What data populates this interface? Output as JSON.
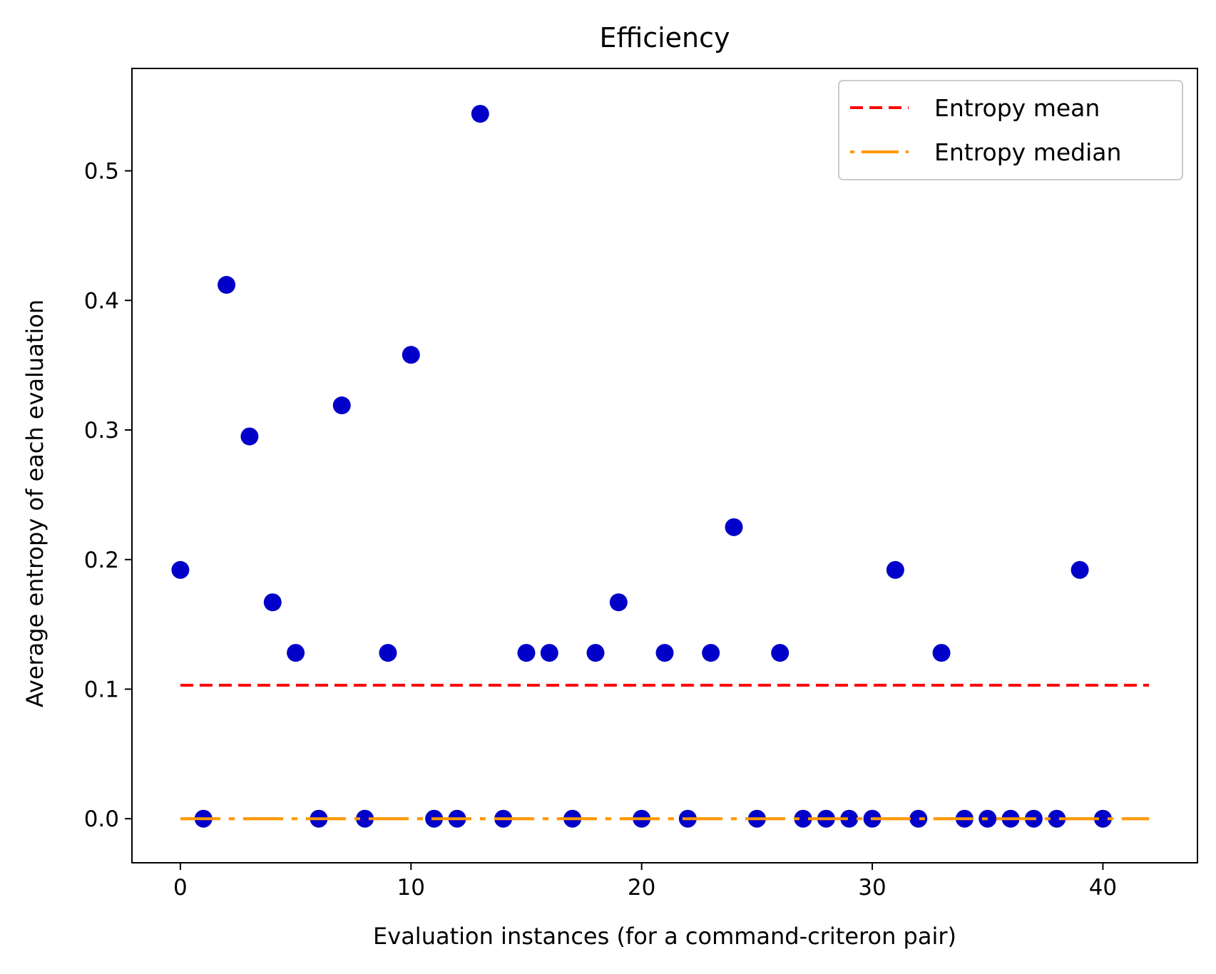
{
  "chart_data": {
    "type": "scatter",
    "title": "Efficiency",
    "xlabel": "Evaluation instances (for a command-criteron pair)",
    "ylabel": "Average entropy of each evaluation",
    "xlim": [
      -2.1,
      44.1
    ],
    "ylim": [
      -0.034,
      0.579
    ],
    "xticks": [
      0,
      10,
      20,
      30,
      40
    ],
    "yticks": [
      0.0,
      0.1,
      0.2,
      0.3,
      0.4,
      0.5
    ],
    "xtick_labels": [
      "0",
      "10",
      "20",
      "30",
      "40"
    ],
    "ytick_labels": [
      "0.0",
      "0.1",
      "0.2",
      "0.3",
      "0.4",
      "0.5"
    ],
    "grid": false,
    "legend_position": "top-right",
    "series": [
      {
        "kind": "points",
        "color": "#0000c8",
        "x": [
          0,
          1,
          2,
          3,
          4,
          5,
          6,
          7,
          8,
          9,
          10,
          11,
          12,
          13,
          14,
          15,
          16,
          17,
          18,
          19,
          20,
          21,
          22,
          23,
          24,
          25,
          26,
          27,
          28,
          29,
          30,
          31,
          32,
          33,
          34,
          35,
          36,
          37,
          38,
          39,
          40
        ],
        "y": [
          0.192,
          0.0,
          0.412,
          0.295,
          0.167,
          0.128,
          0.0,
          0.319,
          0.0,
          0.128,
          0.358,
          0.0,
          0.0,
          0.544,
          0.0,
          0.128,
          0.128,
          0.0,
          0.128,
          0.167,
          0.0,
          0.128,
          0.0,
          0.128,
          0.225,
          0.0,
          0.128,
          0.0,
          0.0,
          0.0,
          0.0,
          0.192,
          0.0,
          0.128,
          0.0,
          0.0,
          0.0,
          0.0,
          0.0,
          0.192,
          0.0
        ]
      },
      {
        "kind": "line",
        "name": "Entropy mean",
        "color": "#ff0000",
        "style": "dashed",
        "x": [
          0,
          42
        ],
        "y": [
          0.103,
          0.103
        ]
      },
      {
        "kind": "line",
        "name": "Entropy median",
        "color": "#ff9900",
        "style": "dashdot",
        "x": [
          0,
          42
        ],
        "y": [
          0.0,
          0.0
        ]
      }
    ]
  }
}
